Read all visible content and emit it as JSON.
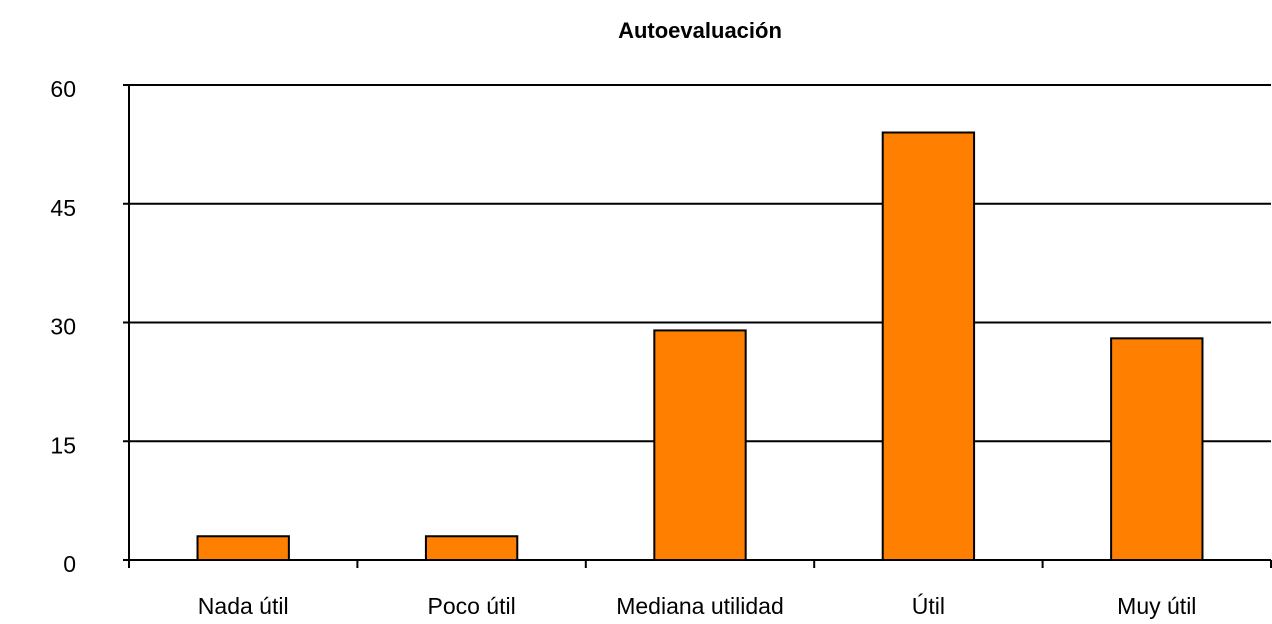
{
  "chart_data": {
    "type": "bar",
    "title": "Autoevaluación",
    "categories": [
      "Nada útil",
      "Poco útil",
      "Mediana utilidad",
      "Útil",
      "Muy útil"
    ],
    "values": [
      3,
      3,
      29,
      54,
      28
    ],
    "color": "#ff8000",
    "ylim": [
      0,
      60
    ],
    "yticks": [
      0,
      15,
      30,
      45,
      60
    ],
    "grid": true
  }
}
